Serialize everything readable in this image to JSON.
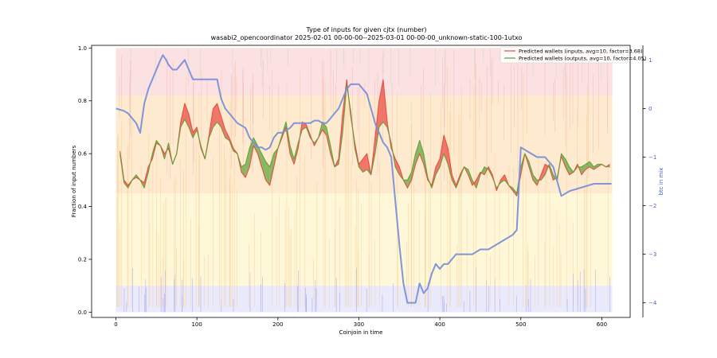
{
  "chart_data": {
    "type": "line",
    "title": "Type of inputs for given cjtx (number)",
    "subtitle": "wasabi2_opencoordinator 2025-02-01 00-00-00--2025-03-01 00-00-00_unknown-static-100-1utxo",
    "xlabel": "Coinjoin in time",
    "ylabel": "Fraction of input numbers",
    "y2label": "btc in mix",
    "xlim": [
      -30,
      635
    ],
    "ylim": [
      -0.02,
      1.01
    ],
    "y2lim": [
      -4.3,
      1.3
    ],
    "xticks": [
      0,
      100,
      200,
      300,
      400,
      500,
      600
    ],
    "yticks": [
      0.0,
      0.2,
      0.4,
      0.6,
      0.8,
      1.0
    ],
    "y2ticks": [
      -4,
      -3,
      -2,
      -1,
      0,
      1
    ],
    "grid": false,
    "legend_position": "top-right",
    "series": [
      {
        "name": "Predicted wallets (inputs, avg=10, factor=3.68)",
        "axis": "left",
        "color": "#e8453c",
        "x": [
          5,
          10,
          15,
          20,
          25,
          30,
          35,
          40,
          45,
          50,
          55,
          60,
          65,
          70,
          75,
          80,
          85,
          90,
          95,
          100,
          105,
          110,
          115,
          120,
          125,
          130,
          135,
          140,
          145,
          150,
          155,
          160,
          165,
          170,
          175,
          180,
          185,
          190,
          195,
          200,
          205,
          210,
          215,
          220,
          225,
          230,
          235,
          240,
          245,
          250,
          255,
          260,
          265,
          270,
          275,
          280,
          285,
          290,
          295,
          300,
          305,
          310,
          315,
          320,
          325,
          330,
          335,
          340,
          345,
          350,
          355,
          360,
          365,
          370,
          375,
          380,
          385,
          390,
          395,
          400,
          405,
          410,
          415,
          420,
          425,
          430,
          435,
          440,
          445,
          450,
          455,
          460,
          465,
          470,
          475,
          480,
          485,
          490,
          495,
          500,
          505,
          510,
          515,
          520,
          525,
          530,
          535,
          540,
          545,
          550,
          555,
          560,
          565,
          570,
          575,
          580,
          585,
          590,
          595,
          600,
          605,
          610
        ],
        "y": [
          0.61,
          0.5,
          0.48,
          0.5,
          0.51,
          0.5,
          0.49,
          0.55,
          0.58,
          0.64,
          0.63,
          0.6,
          0.62,
          0.56,
          0.6,
          0.72,
          0.79,
          0.75,
          0.68,
          0.7,
          0.62,
          0.58,
          0.67,
          0.77,
          0.79,
          0.74,
          0.69,
          0.66,
          0.62,
          0.6,
          0.53,
          0.51,
          0.55,
          0.63,
          0.6,
          0.55,
          0.5,
          0.48,
          0.55,
          0.62,
          0.66,
          0.7,
          0.6,
          0.56,
          0.62,
          0.72,
          0.71,
          0.67,
          0.63,
          0.66,
          0.69,
          0.67,
          0.6,
          0.55,
          0.58,
          0.75,
          0.88,
          0.74,
          0.64,
          0.56,
          0.58,
          0.6,
          0.52,
          0.66,
          0.8,
          0.88,
          0.72,
          0.62,
          0.58,
          0.55,
          0.5,
          0.47,
          0.5,
          0.56,
          0.6,
          0.56,
          0.5,
          0.48,
          0.55,
          0.58,
          0.67,
          0.62,
          0.52,
          0.48,
          0.52,
          0.55,
          0.52,
          0.48,
          0.5,
          0.53,
          0.52,
          0.55,
          0.52,
          0.46,
          0.5,
          0.52,
          0.48,
          0.46,
          0.44,
          0.52,
          0.6,
          0.55,
          0.5,
          0.48,
          0.52,
          0.56,
          0.55,
          0.5,
          0.51,
          0.59,
          0.55,
          0.52,
          0.53,
          0.56,
          0.52,
          0.54,
          0.55,
          0.54,
          0.55,
          0.56,
          0.55,
          0.56
        ]
      },
      {
        "name": "Predicted wallets (outputs, avg=10, factor=4.05)",
        "axis": "left",
        "color": "#5aa033",
        "x": [
          5,
          10,
          15,
          20,
          25,
          30,
          35,
          40,
          45,
          50,
          55,
          60,
          65,
          70,
          75,
          80,
          85,
          90,
          95,
          100,
          105,
          110,
          115,
          120,
          125,
          130,
          135,
          140,
          145,
          150,
          155,
          160,
          165,
          170,
          175,
          180,
          185,
          190,
          195,
          200,
          205,
          210,
          215,
          220,
          225,
          230,
          235,
          240,
          245,
          250,
          255,
          260,
          265,
          270,
          275,
          280,
          285,
          290,
          295,
          300,
          305,
          310,
          315,
          320,
          325,
          330,
          335,
          340,
          345,
          350,
          355,
          360,
          365,
          370,
          375,
          380,
          385,
          390,
          395,
          400,
          405,
          410,
          415,
          420,
          425,
          430,
          435,
          440,
          445,
          450,
          455,
          460,
          465,
          470,
          475,
          480,
          485,
          490,
          495,
          500,
          505,
          510,
          515,
          520,
          525,
          530,
          535,
          540,
          545,
          550,
          555,
          560,
          565,
          570,
          575,
          580,
          585,
          590,
          595,
          600,
          605,
          610
        ],
        "y": [
          0.6,
          0.49,
          0.47,
          0.5,
          0.52,
          0.5,
          0.47,
          0.53,
          0.6,
          0.65,
          0.63,
          0.58,
          0.64,
          0.56,
          0.6,
          0.7,
          0.73,
          0.7,
          0.66,
          0.69,
          0.63,
          0.58,
          0.66,
          0.7,
          0.72,
          0.7,
          0.66,
          0.65,
          0.61,
          0.6,
          0.55,
          0.56,
          0.62,
          0.66,
          0.63,
          0.6,
          0.57,
          0.55,
          0.6,
          0.62,
          0.67,
          0.72,
          0.63,
          0.58,
          0.64,
          0.69,
          0.7,
          0.66,
          0.64,
          0.66,
          0.72,
          0.7,
          0.63,
          0.55,
          0.56,
          0.68,
          0.86,
          0.76,
          0.62,
          0.55,
          0.53,
          0.54,
          0.52,
          0.6,
          0.7,
          0.72,
          0.7,
          0.64,
          0.55,
          0.52,
          0.5,
          0.5,
          0.53,
          0.6,
          0.65,
          0.6,
          0.51,
          0.47,
          0.52,
          0.55,
          0.6,
          0.56,
          0.5,
          0.47,
          0.51,
          0.55,
          0.54,
          0.5,
          0.47,
          0.52,
          0.55,
          0.54,
          0.51,
          0.47,
          0.49,
          0.5,
          0.48,
          0.47,
          0.45,
          0.55,
          0.6,
          0.57,
          0.52,
          0.5,
          0.5,
          0.52,
          0.56,
          0.52,
          0.5,
          0.6,
          0.58,
          0.55,
          0.53,
          0.55,
          0.55,
          0.56,
          0.57,
          0.55,
          0.56,
          0.56,
          0.55,
          0.55
        ]
      },
      {
        "name": "btc in mix",
        "axis": "right",
        "color": "#7a90d8",
        "x": [
          0,
          10,
          15,
          20,
          25,
          30,
          35,
          40,
          45,
          50,
          55,
          58,
          62,
          65,
          70,
          75,
          80,
          85,
          90,
          95,
          100,
          105,
          110,
          115,
          120,
          125,
          130,
          135,
          140,
          145,
          150,
          155,
          160,
          165,
          170,
          175,
          180,
          185,
          190,
          195,
          200,
          205,
          210,
          215,
          220,
          225,
          230,
          235,
          240,
          245,
          250,
          255,
          260,
          265,
          270,
          275,
          280,
          285,
          290,
          295,
          300,
          305,
          310,
          315,
          320,
          325,
          330,
          335,
          340,
          345,
          350,
          355,
          360,
          365,
          370,
          375,
          380,
          385,
          390,
          395,
          400,
          405,
          410,
          420,
          430,
          440,
          450,
          460,
          470,
          480,
          490,
          495,
          500,
          505,
          510,
          520,
          530,
          540,
          550,
          560,
          570,
          580,
          590,
          600,
          612
        ],
        "y": [
          0.0,
          -0.05,
          -0.1,
          -0.2,
          -0.3,
          -0.5,
          0.1,
          0.4,
          0.6,
          0.8,
          1.0,
          1.1,
          1.0,
          0.9,
          0.8,
          0.8,
          0.9,
          1.0,
          0.8,
          0.6,
          0.6,
          0.6,
          0.6,
          0.6,
          0.6,
          0.6,
          0.2,
          0.0,
          -0.1,
          -0.2,
          -0.3,
          -0.35,
          -0.4,
          -0.6,
          -0.7,
          -0.8,
          -0.8,
          -0.85,
          -0.8,
          -0.6,
          -0.5,
          -0.5,
          -0.45,
          -0.4,
          -0.3,
          -0.3,
          -0.3,
          -0.3,
          -0.3,
          -0.25,
          -0.25,
          -0.3,
          -0.3,
          -0.2,
          -0.1,
          0.0,
          0.2,
          0.4,
          0.5,
          0.5,
          0.5,
          0.4,
          0.3,
          0.0,
          -0.3,
          -0.5,
          -0.7,
          -0.8,
          -1.0,
          -1.9,
          -2.8,
          -3.6,
          -4.0,
          -4.0,
          -4.0,
          -3.6,
          -3.8,
          -3.7,
          -3.4,
          -3.2,
          -3.3,
          -3.2,
          -3.2,
          -3.0,
          -3.0,
          -3.0,
          -2.9,
          -2.9,
          -2.8,
          -2.7,
          -2.6,
          -2.5,
          -0.8,
          -0.85,
          -0.9,
          -1.0,
          -1.0,
          -1.2,
          -1.8,
          -1.7,
          -1.65,
          -1.6,
          -1.55,
          -1.55,
          -1.55
        ]
      }
    ],
    "background_bands": [
      {
        "name": "top-band",
        "color": "#f7c9c9",
        "range": [
          0.82,
          1.0
        ]
      },
      {
        "name": "upper-orange-band",
        "color": "#fbd9a8",
        "range": [
          0.45,
          0.82
        ]
      },
      {
        "name": "yellow-band",
        "color": "#fdf0b8",
        "range": [
          0.1,
          0.45
        ]
      },
      {
        "name": "blue-band",
        "color": "#d8d8fb",
        "range": [
          0.0,
          0.1
        ]
      }
    ]
  }
}
